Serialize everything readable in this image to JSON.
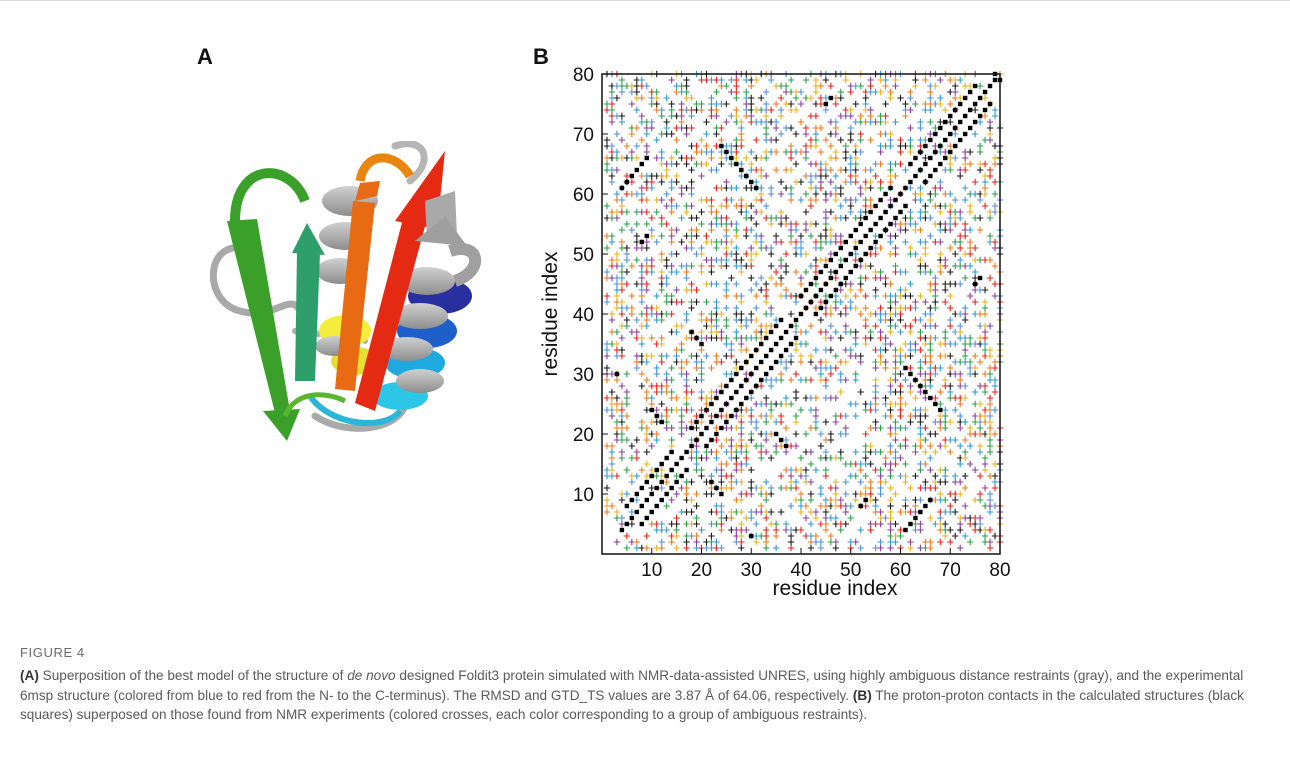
{
  "figure": {
    "number": "FIGURE 4",
    "panel_a_label": "A",
    "panel_b_label": "B"
  },
  "caption": {
    "a_tag": "(A)",
    "a_text_1": " Superposition of the best model of the structure of ",
    "a_italic": "de novo",
    "a_text_2": " designed Foldit3 protein simulated with NMR-data-assisted UNRES, using highly ambiguous distance restraints (gray), and the experimental 6msp structure (colored from blue to red from the N- to the C-terminus). The RMSD and GTD_TS values are 3.87 Å of 64.06, respectively. ",
    "b_tag": "(B)",
    "b_text": " The proton-proton contacts in the calculated structures (black squares) superposed on those found from NMR experiments (colored crosses, each color corresponding to a group of ambiguous restraints)."
  },
  "protein_colors": {
    "model": "#b8b8b8",
    "n_terminus": "#1f2a9e",
    "c_terminus": "#e82a10"
  },
  "chart_data": {
    "type": "scatter",
    "title": "",
    "xlabel": "residue index",
    "ylabel": "residue index",
    "xlim": [
      0,
      80
    ],
    "ylim": [
      0,
      80
    ],
    "xticks": [
      10,
      20,
      30,
      40,
      50,
      60,
      70,
      80
    ],
    "yticks": [
      10,
      20,
      30,
      40,
      50,
      60,
      70,
      80
    ],
    "grid": false,
    "legend": "none",
    "cross_colors": [
      "#e8221b",
      "#2e9ad8",
      "#1a1a1a",
      "#e8b21b",
      "#2aa04a",
      "#8a3d9e",
      "#4f8fe0",
      "#f07a1a"
    ],
    "series": [
      {
        "marker": "square",
        "color": "#000000",
        "points": [
          [
            4,
            4
          ],
          [
            5,
            5
          ],
          [
            6,
            6
          ],
          [
            7,
            7
          ],
          [
            8,
            8
          ],
          [
            9,
            9
          ],
          [
            10,
            10
          ],
          [
            11,
            11
          ],
          [
            12,
            12
          ],
          [
            13,
            13
          ],
          [
            14,
            14
          ],
          [
            15,
            15
          ],
          [
            16,
            16
          ],
          [
            17,
            17
          ],
          [
            18,
            18
          ],
          [
            19,
            19
          ],
          [
            20,
            20
          ],
          [
            21,
            21
          ],
          [
            22,
            22
          ],
          [
            23,
            23
          ],
          [
            24,
            24
          ],
          [
            25,
            25
          ],
          [
            26,
            26
          ],
          [
            27,
            27
          ],
          [
            28,
            28
          ],
          [
            29,
            29
          ],
          [
            30,
            30
          ],
          [
            31,
            31
          ],
          [
            32,
            32
          ],
          [
            33,
            33
          ],
          [
            34,
            34
          ],
          [
            35,
            35
          ],
          [
            36,
            36
          ],
          [
            37,
            37
          ],
          [
            38,
            38
          ],
          [
            39,
            39
          ],
          [
            40,
            40
          ],
          [
            41,
            41
          ],
          [
            42,
            42
          ],
          [
            43,
            43
          ],
          [
            44,
            44
          ],
          [
            45,
            45
          ],
          [
            46,
            46
          ],
          [
            47,
            47
          ],
          [
            48,
            48
          ],
          [
            49,
            49
          ],
          [
            50,
            50
          ],
          [
            51,
            51
          ],
          [
            52,
            52
          ],
          [
            53,
            53
          ],
          [
            54,
            54
          ],
          [
            55,
            55
          ],
          [
            56,
            56
          ],
          [
            57,
            57
          ],
          [
            58,
            58
          ],
          [
            59,
            59
          ],
          [
            60,
            60
          ],
          [
            61,
            61
          ],
          [
            62,
            62
          ],
          [
            63,
            63
          ],
          [
            64,
            64
          ],
          [
            65,
            65
          ],
          [
            66,
            66
          ],
          [
            67,
            67
          ],
          [
            68,
            68
          ],
          [
            69,
            69
          ],
          [
            70,
            70
          ],
          [
            71,
            71
          ],
          [
            72,
            72
          ],
          [
            73,
            73
          ],
          [
            74,
            74
          ],
          [
            75,
            75
          ],
          [
            76,
            76
          ],
          [
            77,
            77
          ],
          [
            78,
            78
          ],
          [
            79,
            79
          ],
          [
            5,
            8
          ],
          [
            6,
            9
          ],
          [
            7,
            10
          ],
          [
            8,
            11
          ],
          [
            9,
            12
          ],
          [
            10,
            13
          ],
          [
            11,
            14
          ],
          [
            12,
            15
          ],
          [
            13,
            16
          ],
          [
            14,
            17
          ],
          [
            18,
            21
          ],
          [
            19,
            22
          ],
          [
            20,
            23
          ],
          [
            21,
            24
          ],
          [
            22,
            25
          ],
          [
            23,
            26
          ],
          [
            24,
            27
          ],
          [
            25,
            28
          ],
          [
            26,
            29
          ],
          [
            27,
            30
          ],
          [
            28,
            31
          ],
          [
            29,
            32
          ],
          [
            30,
            33
          ],
          [
            31,
            34
          ],
          [
            32,
            35
          ],
          [
            33,
            36
          ],
          [
            34,
            37
          ],
          [
            35,
            38
          ],
          [
            36,
            39
          ],
          [
            40,
            43
          ],
          [
            41,
            44
          ],
          [
            42,
            45
          ],
          [
            43,
            46
          ],
          [
            44,
            47
          ],
          [
            45,
            48
          ],
          [
            46,
            49
          ],
          [
            47,
            50
          ],
          [
            48,
            51
          ],
          [
            49,
            52
          ],
          [
            50,
            53
          ],
          [
            51,
            54
          ],
          [
            52,
            55
          ],
          [
            53,
            56
          ],
          [
            54,
            57
          ],
          [
            55,
            58
          ],
          [
            56,
            59
          ],
          [
            57,
            60
          ],
          [
            58,
            61
          ],
          [
            62,
            65
          ],
          [
            63,
            66
          ],
          [
            64,
            67
          ],
          [
            65,
            68
          ],
          [
            66,
            69
          ],
          [
            67,
            70
          ],
          [
            68,
            71
          ],
          [
            69,
            72
          ],
          [
            70,
            73
          ],
          [
            71,
            74
          ],
          [
            72,
            75
          ],
          [
            73,
            76
          ],
          [
            74,
            77
          ],
          [
            75,
            78
          ],
          [
            8,
            5
          ],
          [
            9,
            6
          ],
          [
            10,
            7
          ],
          [
            11,
            8
          ],
          [
            12,
            9
          ],
          [
            13,
            10
          ],
          [
            14,
            11
          ],
          [
            15,
            12
          ],
          [
            16,
            13
          ],
          [
            17,
            14
          ],
          [
            21,
            18
          ],
          [
            22,
            19
          ],
          [
            23,
            20
          ],
          [
            24,
            21
          ],
          [
            25,
            22
          ],
          [
            26,
            23
          ],
          [
            27,
            24
          ],
          [
            28,
            25
          ],
          [
            29,
            26
          ],
          [
            30,
            27
          ],
          [
            31,
            28
          ],
          [
            32,
            29
          ],
          [
            33,
            30
          ],
          [
            34,
            31
          ],
          [
            35,
            32
          ],
          [
            36,
            33
          ],
          [
            37,
            34
          ],
          [
            38,
            35
          ],
          [
            39,
            36
          ],
          [
            43,
            40
          ],
          [
            44,
            41
          ],
          [
            45,
            42
          ],
          [
            46,
            43
          ],
          [
            47,
            44
          ],
          [
            48,
            45
          ],
          [
            49,
            46
          ],
          [
            50,
            47
          ],
          [
            51,
            48
          ],
          [
            52,
            49
          ],
          [
            53,
            50
          ],
          [
            54,
            51
          ],
          [
            55,
            52
          ],
          [
            56,
            53
          ],
          [
            57,
            54
          ],
          [
            58,
            55
          ],
          [
            59,
            56
          ],
          [
            60,
            57
          ],
          [
            61,
            58
          ],
          [
            65,
            62
          ],
          [
            66,
            63
          ],
          [
            67,
            64
          ],
          [
            68,
            65
          ],
          [
            69,
            66
          ],
          [
            70,
            67
          ],
          [
            71,
            68
          ],
          [
            72,
            69
          ],
          [
            73,
            70
          ],
          [
            74,
            71
          ],
          [
            75,
            72
          ],
          [
            76,
            73
          ],
          [
            77,
            74
          ],
          [
            78,
            75
          ],
          [
            61,
            4
          ],
          [
            62,
            5
          ],
          [
            63,
            6
          ],
          [
            64,
            7
          ],
          [
            65,
            8
          ],
          [
            66,
            9
          ],
          [
            24,
            68
          ],
          [
            25,
            67
          ],
          [
            26,
            66
          ],
          [
            27,
            65
          ],
          [
            28,
            64
          ],
          [
            29,
            63
          ],
          [
            30,
            62
          ],
          [
            31,
            61
          ],
          [
            68,
            24
          ],
          [
            67,
            25
          ],
          [
            66,
            26
          ],
          [
            65,
            27
          ],
          [
            64,
            28
          ],
          [
            63,
            29
          ],
          [
            62,
            30
          ],
          [
            61,
            31
          ],
          [
            22,
            12
          ],
          [
            23,
            11
          ],
          [
            24,
            10
          ],
          [
            12,
            22
          ],
          [
            11,
            23
          ],
          [
            10,
            24
          ],
          [
            35,
            20
          ],
          [
            36,
            19
          ],
          [
            37,
            18
          ],
          [
            20,
            35
          ],
          [
            19,
            36
          ],
          [
            18,
            37
          ],
          [
            52,
            8
          ],
          [
            53,
            9
          ],
          [
            8,
            52
          ],
          [
            9,
            53
          ],
          [
            75,
            45
          ],
          [
            76,
            46
          ],
          [
            45,
            75
          ],
          [
            46,
            76
          ],
          [
            4,
            61
          ],
          [
            5,
            62
          ],
          [
            6,
            63
          ],
          [
            7,
            64
          ],
          [
            8,
            65
          ],
          [
            9,
            66
          ],
          [
            79,
            80
          ],
          [
            80,
            79
          ],
          [
            3,
            30
          ],
          [
            30,
            3
          ]
        ]
      }
    ]
  }
}
